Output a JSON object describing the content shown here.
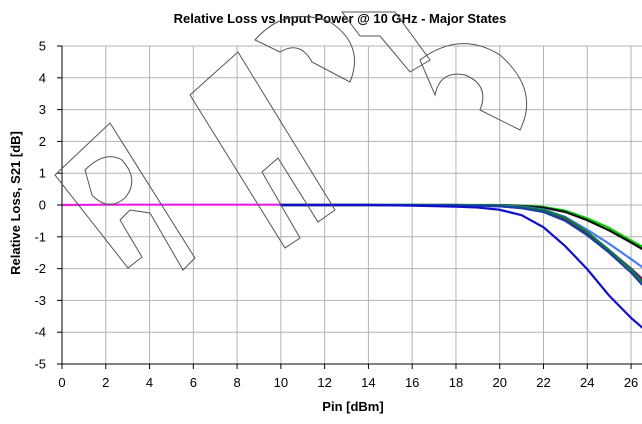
{
  "chart_data": {
    "type": "line",
    "title": "Relative Loss vs Input Power @ 10 GHz - Major States",
    "xlabel": "Pin [dBm]",
    "ylabel": "Relative Loss, S21 [dB]",
    "xlim": [
      0,
      26.5
    ],
    "ylim": [
      -5,
      5
    ],
    "x_ticks": [
      0,
      2,
      4,
      6,
      8,
      10,
      12,
      14,
      16,
      18,
      20,
      22,
      24,
      26
    ],
    "y_ticks": [
      5,
      4,
      3,
      2,
      1,
      0,
      -1,
      -2,
      -3,
      -4,
      -5
    ],
    "grid": true,
    "legend": "none",
    "series": [
      {
        "color": "#e81ee8",
        "x": [
          0,
          2,
          4,
          6,
          8,
          10
        ],
        "y": [
          0,
          0.01,
          0.01,
          0.01,
          0.01,
          0.01
        ]
      },
      {
        "color": "#00cc00",
        "x": [
          10,
          14,
          18,
          20,
          21,
          22,
          23,
          24,
          25,
          26,
          26.5
        ],
        "y": [
          0,
          0,
          0,
          0,
          -0.02,
          -0.06,
          -0.18,
          -0.42,
          -0.72,
          -1.12,
          -1.3
        ]
      },
      {
        "color": "#111111",
        "x": [
          10,
          14,
          18,
          20,
          21,
          22,
          23,
          24,
          25,
          26,
          26.5
        ],
        "y": [
          0,
          0,
          0,
          -0.01,
          -0.03,
          -0.08,
          -0.22,
          -0.48,
          -0.8,
          -1.18,
          -1.38
        ]
      },
      {
        "color": "#4a7cf0",
        "x": [
          10,
          14,
          18,
          20,
          21,
          22,
          23,
          24,
          25,
          26,
          26.5
        ],
        "y": [
          0,
          0,
          0,
          -0.02,
          -0.05,
          -0.14,
          -0.38,
          -0.78,
          -1.22,
          -1.7,
          -1.95
        ]
      },
      {
        "color": "#800060",
        "x": [
          10,
          14,
          18,
          20,
          21,
          22,
          23,
          24,
          25,
          26,
          26.5
        ],
        "y": [
          0,
          0,
          -0.01,
          -0.04,
          -0.09,
          -0.2,
          -0.44,
          -0.88,
          -1.42,
          -2.0,
          -2.32
        ]
      },
      {
        "color": "#0f7a3a",
        "x": [
          10,
          14,
          18,
          20,
          21,
          22,
          23,
          24,
          25,
          26,
          26.5
        ],
        "y": [
          0,
          0,
          0,
          -0.03,
          -0.07,
          -0.16,
          -0.4,
          -0.85,
          -1.42,
          -2.02,
          -2.4
        ]
      },
      {
        "color": "#1a3fa0",
        "x": [
          10,
          14,
          18,
          20,
          21,
          22,
          23,
          24,
          25,
          26,
          26.5
        ],
        "y": [
          0,
          0,
          -0.01,
          -0.04,
          -0.1,
          -0.22,
          -0.5,
          -0.95,
          -1.5,
          -2.12,
          -2.5
        ]
      },
      {
        "color": "#1010cc",
        "x": [
          10,
          14,
          16,
          18,
          19,
          20,
          21,
          22,
          23,
          24,
          25,
          26,
          26.5
        ],
        "y": [
          0,
          0,
          -0.02,
          -0.05,
          -0.08,
          -0.15,
          -0.32,
          -0.7,
          -1.3,
          -2.02,
          -2.85,
          -3.55,
          -3.85
        ]
      }
    ]
  }
}
